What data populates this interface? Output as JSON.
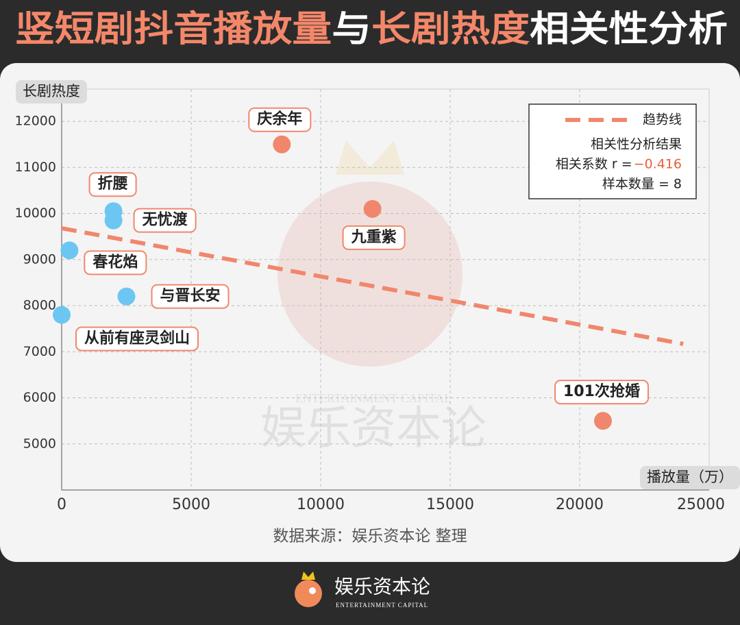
{
  "title_parts": [
    {
      "text": "竖短剧抖音播放量",
      "color": "#f4876a"
    },
    {
      "text": "与",
      "color": "#ffffff"
    },
    {
      "text": "长剧热度",
      "color": "#f4876a"
    },
    {
      "text": "相关性分析",
      "color": "#ffffff"
    }
  ],
  "chart_data": {
    "type": "scatter",
    "y_label": "长剧热度",
    "x_label": "播放量（万）",
    "xlim": [
      0,
      25000
    ],
    "xticks": [
      0,
      5000,
      10000,
      15000,
      20000,
      25000
    ],
    "ylim": [
      4000,
      12700
    ],
    "yticks": [
      5000,
      6000,
      7000,
      8000,
      9000,
      10000,
      11000,
      12000
    ],
    "grid": true,
    "points": [
      {
        "label": "庆余年",
        "x": 8500,
        "y": 11500,
        "color": "#f0876c"
      },
      {
        "label": "九重紫",
        "x": 12000,
        "y": 10100,
        "color": "#f0876c"
      },
      {
        "label": "101次抢婚",
        "x": 20900,
        "y": 5500,
        "color": "#f0876c"
      },
      {
        "label": "折腰",
        "x": 2000,
        "y": 10050,
        "color": "#6cc6f2"
      },
      {
        "label": "无忧渡",
        "x": 2000,
        "y": 9850,
        "color": "#6cc6f2"
      },
      {
        "label": "春花焰",
        "x": 300,
        "y": 9200,
        "color": "#6cc6f2"
      },
      {
        "label": "与晋长安",
        "x": 2500,
        "y": 8200,
        "color": "#6cc6f2"
      },
      {
        "label": "从前有座灵剑山",
        "x": 0,
        "y": 7800,
        "color": "#6cc6f2"
      }
    ],
    "trend": {
      "name": "趋势线",
      "color": "#f0876c",
      "x": [
        0,
        24000
      ],
      "values": [
        9680,
        7170
      ]
    },
    "stats": {
      "title": "相关性分析结果",
      "r_label": "相关系数 r =",
      "r_value": "−0.416",
      "n": "样本数量 = 8"
    },
    "source": "数据来源：娱乐资本论 整理"
  },
  "watermark": {
    "cn": "娱乐资本论",
    "en": "ENTERTAINMENT CAPITAL"
  },
  "footer": {
    "brand": "娱乐资本论",
    "brand_en": "ENTERTAINMENT CAPITAL"
  }
}
